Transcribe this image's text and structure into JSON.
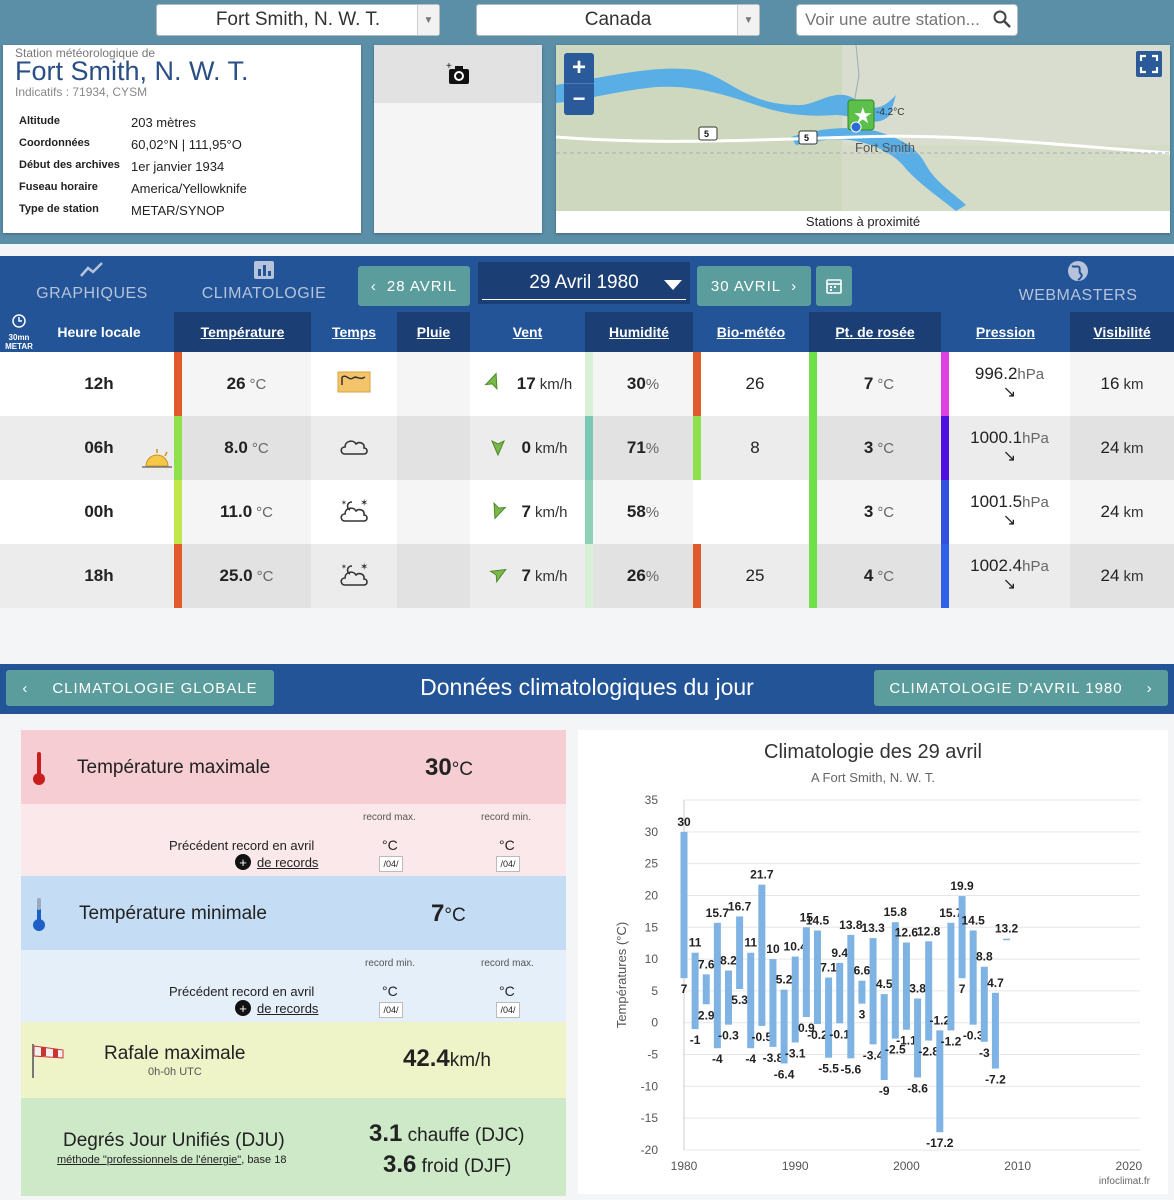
{
  "header": {
    "station_select": "Fort Smith, N. W. T.",
    "country_select": "Canada",
    "search_placeholder": "Voir une autre station..."
  },
  "station": {
    "kicker": "Station météorologique de",
    "name": "Fort Smith, N. W. T.",
    "indicatifs": "Indicatifs : 71934, CYSM",
    "fields": [
      {
        "label": "Altitude",
        "value": "203 mètres"
      },
      {
        "label": "Coordonnées",
        "value": "60,02°N | 111,95°O"
      },
      {
        "label": "Début des archives",
        "value": "1er janvier 1934"
      },
      {
        "label": "Fuseau horaire",
        "value": "America/Yellowknife"
      },
      {
        "label": "Type de station",
        "value": "METAR/SYNOP"
      }
    ]
  },
  "map": {
    "zoom_in": "+",
    "zoom_out": "−",
    "marker_temp": "-4.2°C",
    "town_label": "Fort Smith",
    "road_label_1": "5",
    "road_label_2": "5",
    "caption": "Stations à proximité"
  },
  "nav": {
    "graphiques": "GRAPHIQUES",
    "climatologie": "CLIMATOLOGIE",
    "prev_day": "28 AVRIL",
    "current_date": "29 Avril 1980",
    "next_day": "30 AVRIL",
    "webmasters": "WEBMASTERS"
  },
  "table": {
    "corner_top": "30mn",
    "corner_bottom": "METAR",
    "headers": {
      "heure": "Heure locale",
      "temperature": "Température",
      "temps": "Temps",
      "pluie": "Pluie",
      "vent": "Vent",
      "humidite": "Humidité",
      "biometeo": "Bio-météo",
      "rosee": "Pt. de rosée",
      "pression": "Pression",
      "visibilite": "Visibilité"
    },
    "rows": [
      {
        "heure": "12h",
        "temp": "26",
        "temp_unit": "°C",
        "vent": "17",
        "vent_unit": "km/h",
        "hum": "30",
        "hum_unit": "%",
        "bio": "26",
        "rosee": "7",
        "rosee_unit": "°C",
        "pression": "996.2",
        "pres_unit": "hPa",
        "vis": "16",
        "vis_unit": "km",
        "temp_color": "#e05a2b",
        "hum_color": "#d8f0d8",
        "bio_color": "#e05a2b",
        "rosee_color": "#6ee04a",
        "pres_color": "#e040e0",
        "weather_icon": "sandstorm-icon",
        "wind_icon": "wind-arrow-icon"
      },
      {
        "heure": "06h",
        "temp": "8.0",
        "temp_unit": "°C",
        "vent": "0",
        "vent_unit": "km/h",
        "hum": "71",
        "hum_unit": "%",
        "bio": "8",
        "rosee": "3",
        "rosee_unit": "°C",
        "pression": "1000.1",
        "pres_unit": "hPa",
        "vis": "24",
        "vis_unit": "km",
        "temp_color": "#8fe04a",
        "hum_color": "#78c8b4",
        "bio_color": "#8fe04a",
        "rosee_color": "#6ee04a",
        "pres_color": "#5010e0",
        "weather_icon": "cloud-icon",
        "wind_icon": "wind-arrow-icon"
      },
      {
        "heure": "00h",
        "temp": "11.0",
        "temp_unit": "°C",
        "vent": "7",
        "vent_unit": "km/h",
        "hum": "58",
        "hum_unit": "%",
        "bio": "",
        "rosee": "3",
        "rosee_unit": "°C",
        "pression": "1001.5",
        "pres_unit": "hPa",
        "vis": "24",
        "vis_unit": "km",
        "temp_color": "#c0e84a",
        "hum_color": "#8fd0b8",
        "bio_color": "",
        "rosee_color": "#6ee04a",
        "pres_color": "#3050e0",
        "weather_icon": "night-cloud-icon",
        "wind_icon": "wind-arrow-icon"
      },
      {
        "heure": "18h",
        "temp": "25.0",
        "temp_unit": "°C",
        "vent": "7",
        "vent_unit": "km/h",
        "hum": "26",
        "hum_unit": "%",
        "bio": "25",
        "rosee": "4",
        "rosee_unit": "°C",
        "pression": "1002.4",
        "pres_unit": "hPa",
        "vis": "24",
        "vis_unit": "km",
        "temp_color": "#e05a2b",
        "hum_color": "#d8f0d8",
        "bio_color": "#e05a2b",
        "rosee_color": "#6ee04a",
        "pres_color": "#3060e8",
        "weather_icon": "night-cloud-icon",
        "wind_icon": "wind-arrow-icon"
      }
    ]
  },
  "clim_nav": {
    "left_btn": "CLIMATOLOGIE GLOBALE",
    "title": "Données climatologiques du jour",
    "right_btn": "CLIMATOLOGIE D'AVRIL 1980"
  },
  "climato": {
    "tmax_label": "Température maximale",
    "tmax_value": "30",
    "tmax_unit": "°C",
    "record_max_h": "record max.",
    "record_min_h": "record min.",
    "prev_record": "Précédent record en avril",
    "de_records": "de records",
    "deg_c": "°C",
    "month_code": "/04/",
    "tmin_label": "Température minimale",
    "tmin_value": "7",
    "tmin_unit": "°C",
    "rafale_label": "Rafale maximale",
    "rafale_sub": "0h-0h UTC",
    "rafale_value": "42.4",
    "rafale_unit": "km/h",
    "dju_label": "Degrés Jour Unifiés (DJU)",
    "dju_link": "méthode \"professionnels de l'énergie\"",
    "dju_base": ", base 18",
    "djc_value": "3.1",
    "djc_label": "chauffe (DJC)",
    "djf_value": "3.6",
    "djf_label": "froid (DJF)"
  },
  "chart_data": {
    "type": "bar",
    "title": "Climatologie des 29 avril",
    "subtitle": "A Fort Smith, N. W. T.",
    "ylabel": "Températures (°C)",
    "credit": "infoclimat.fr",
    "ylim": [
      -20,
      35
    ],
    "yticks": [
      35,
      30,
      25,
      20,
      15,
      10,
      5,
      0,
      -5,
      -10,
      -15,
      -20
    ],
    "xticks": [
      1980,
      1990,
      2000,
      2010,
      2020
    ],
    "xlim": [
      1980,
      2021
    ],
    "bar_color": "#7fb3e3",
    "series": [
      {
        "x": 1980,
        "low": 7,
        "high": 30
      },
      {
        "x": 1981,
        "low": -1,
        "high": 11
      },
      {
        "x": 1982,
        "low": 2.9,
        "high": 7.6
      },
      {
        "x": 1983,
        "low": -4,
        "high": 15.7
      },
      {
        "x": 1984,
        "low": -0.3,
        "high": 8.2
      },
      {
        "x": 1985,
        "low": 5.3,
        "high": 16.7
      },
      {
        "x": 1986,
        "low": -4,
        "high": 11
      },
      {
        "x": 1987,
        "low": -0.5,
        "high": 21.7
      },
      {
        "x": 1988,
        "low": -3.8,
        "high": 10
      },
      {
        "x": 1989,
        "low": -6.4,
        "high": 5.2
      },
      {
        "x": 1990,
        "low": -3.1,
        "high": 10.4
      },
      {
        "x": 1991,
        "low": 0.9,
        "high": 15
      },
      {
        "x": 1992,
        "low": -0.2,
        "high": 14.5
      },
      {
        "x": 1993,
        "low": -5.5,
        "high": 7.1
      },
      {
        "x": 1994,
        "low": -0.1,
        "high": 9.4
      },
      {
        "x": 1995,
        "low": -5.6,
        "high": 13.8
      },
      {
        "x": 1996,
        "low": 3,
        "high": 6.6
      },
      {
        "x": 1997,
        "low": -3.4,
        "high": 13.3
      },
      {
        "x": 1998,
        "low": -9,
        "high": 4.5
      },
      {
        "x": 1999,
        "low": -2.5,
        "high": 15.8
      },
      {
        "x": 2000,
        "low": -1.1,
        "high": 12.6
      },
      {
        "x": 2001,
        "low": -8.6,
        "high": 3.8
      },
      {
        "x": 2002,
        "low": -2.8,
        "high": 12.8
      },
      {
        "x": 2003,
        "low": -17.2,
        "high": -1.2
      },
      {
        "x": 2004,
        "low": -1.2,
        "high": 15.7
      },
      {
        "x": 2005,
        "low": 7,
        "high": 19.9
      },
      {
        "x": 2006,
        "low": -0.3,
        "high": 14.5
      },
      {
        "x": 2007,
        "low": -3,
        "high": 8.8
      },
      {
        "x": 2008,
        "low": -7.2,
        "high": 4.7
      },
      {
        "x": 2009,
        "low": 13.2,
        "high": 13.2
      }
    ]
  }
}
